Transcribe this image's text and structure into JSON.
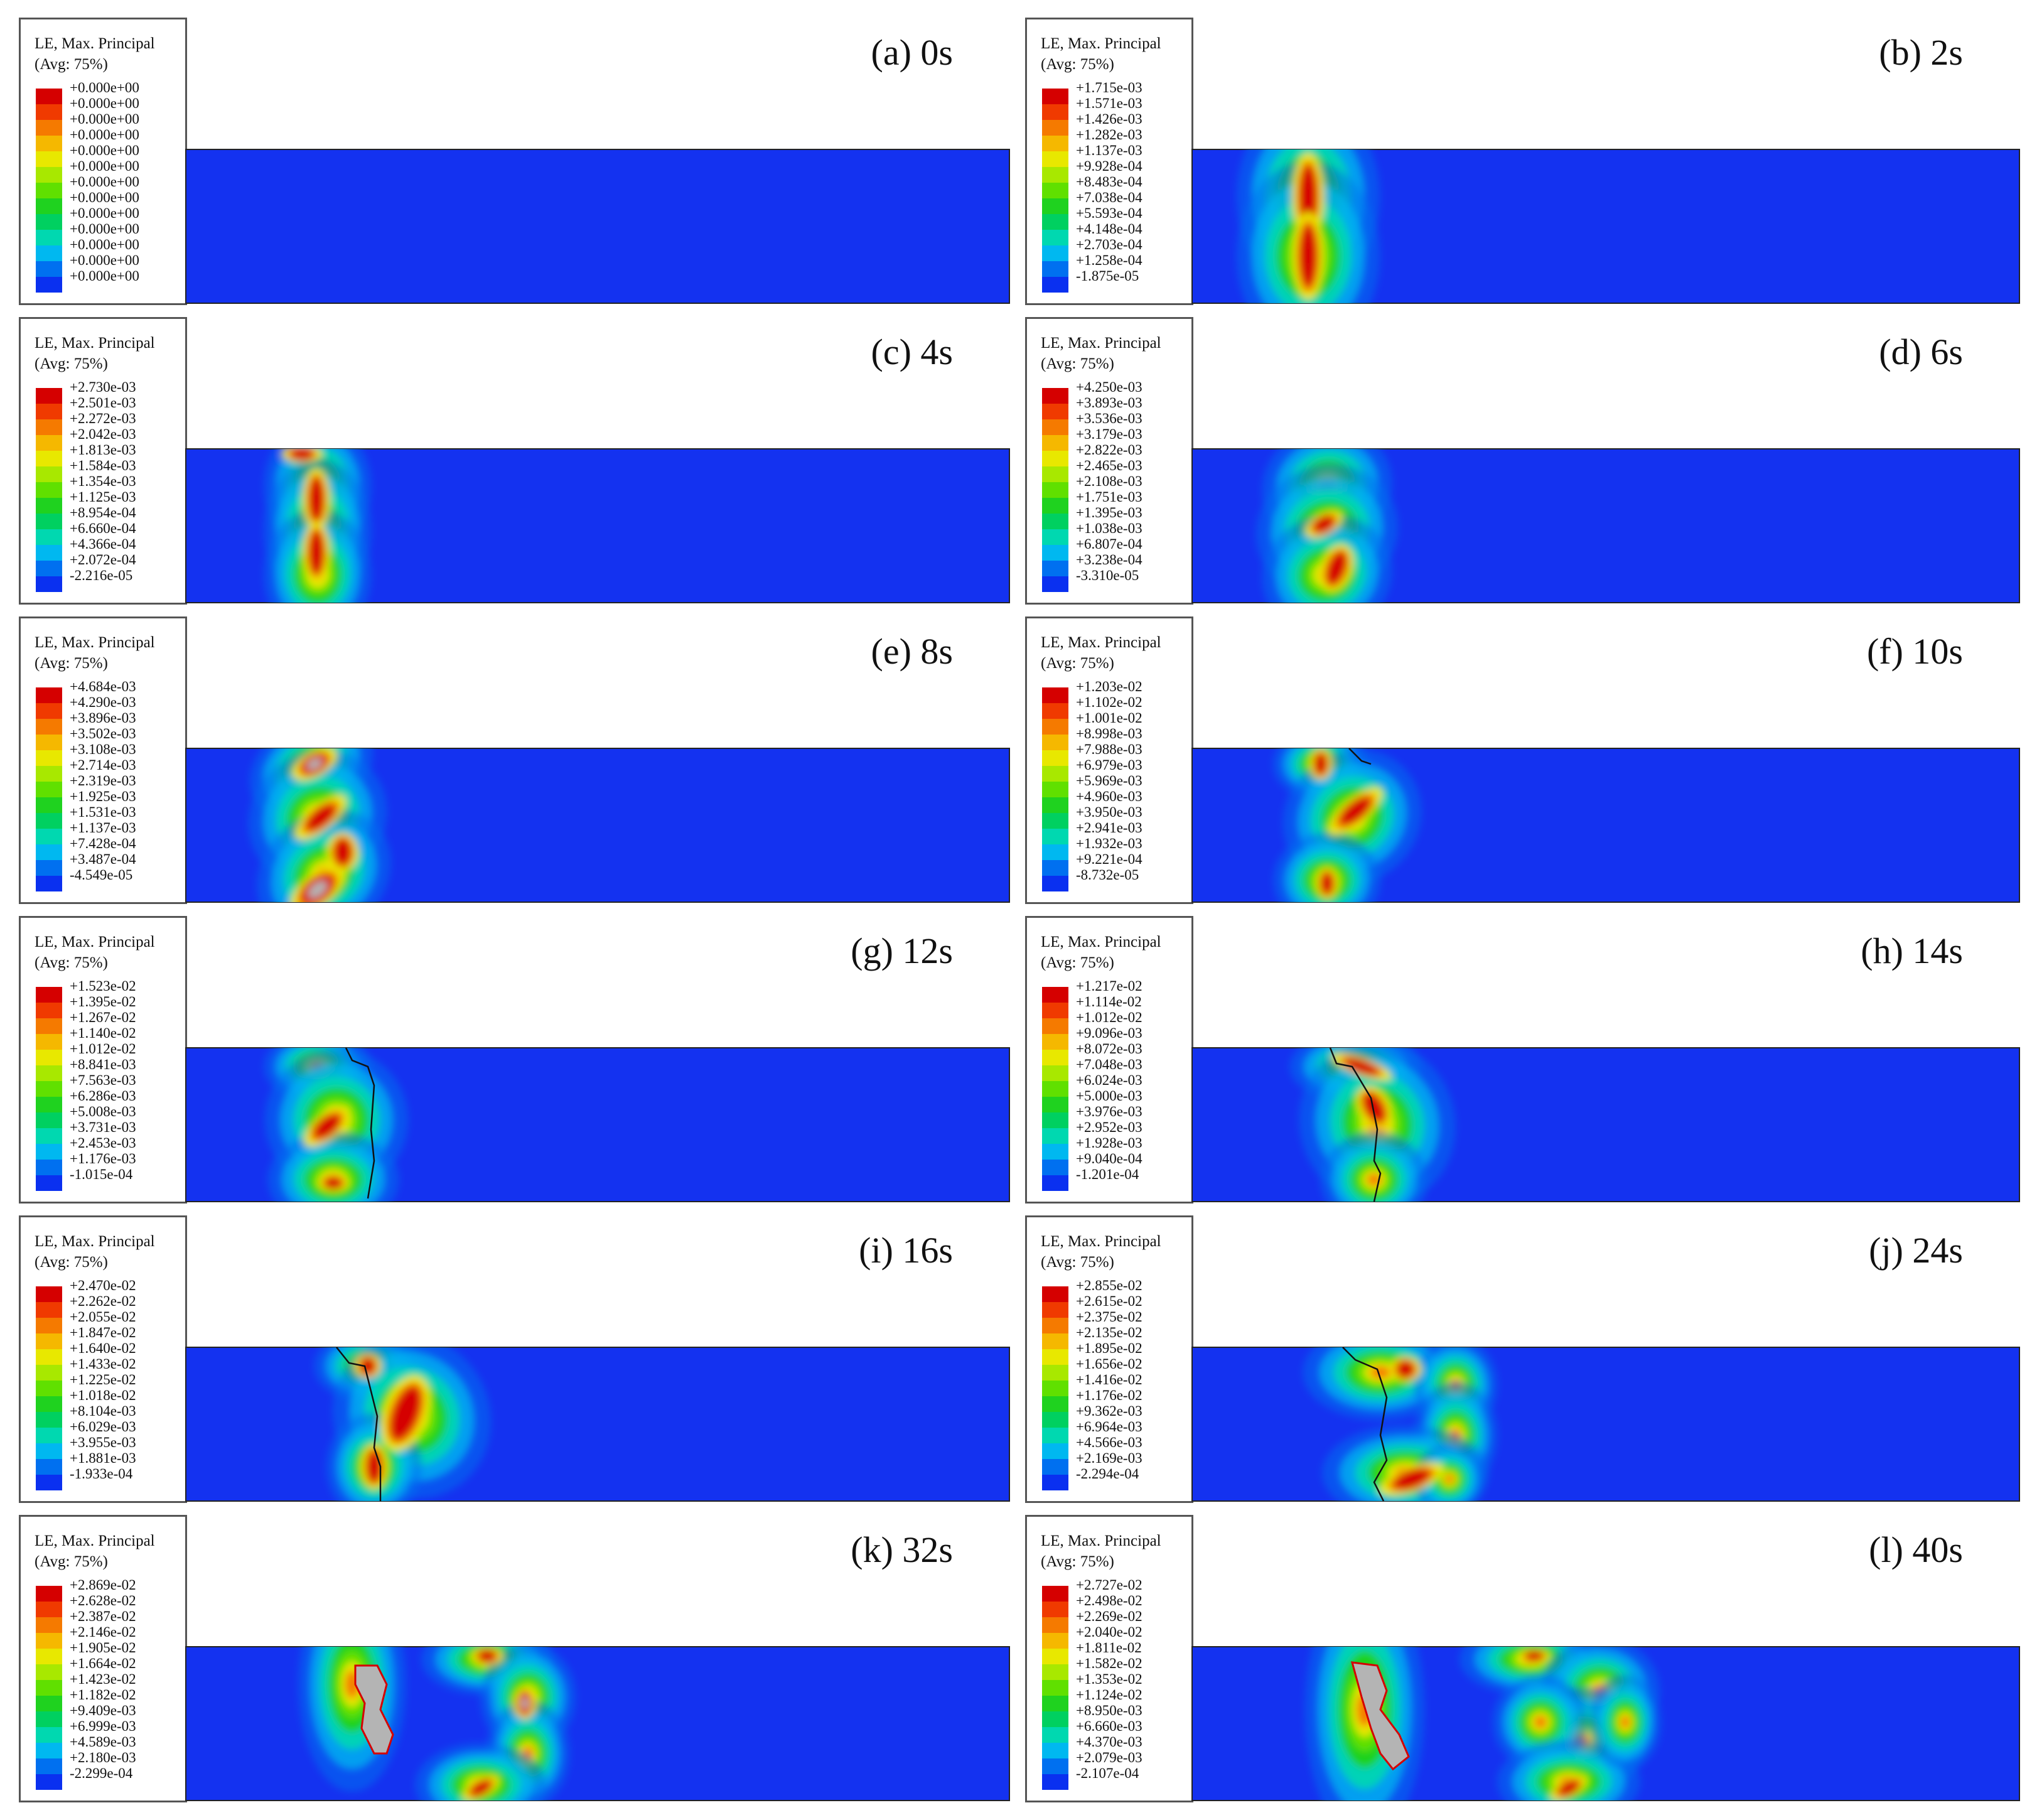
{
  "legend_title": "LE, Max. Principal",
  "legend_avg": "(Avg: 75%)",
  "colors": {
    "background_field": "#1432f0",
    "bands": [
      "#d50000",
      "#f03a00",
      "#f57a00",
      "#f5b800",
      "#e8e800",
      "#a8e800",
      "#60e000",
      "#1fd21f",
      "#00d060",
      "#00d8b0",
      "#00b8f0",
      "#0070f0",
      "#0a30f0"
    ],
    "failed": "#b4b4b4",
    "crack": "#111111",
    "border": "#555555"
  },
  "panels": [
    {
      "label": "(a) 0s",
      "values": [
        "+0.000e+00",
        "+0.000e+00",
        "+0.000e+00",
        "+0.000e+00",
        "+0.000e+00",
        "+0.000e+00",
        "+0.000e+00",
        "+0.000e+00",
        "+0.000e+00",
        "+0.000e+00",
        "+0.000e+00",
        "+0.000e+00",
        "+0.000e+00"
      ]
    },
    {
      "label": "(b) 2s",
      "values": [
        "+1.715e-03",
        "+1.571e-03",
        "+1.426e-03",
        "+1.282e-03",
        "+1.137e-03",
        "+9.928e-04",
        "+8.483e-04",
        "+7.038e-04",
        "+5.593e-04",
        "+4.148e-04",
        "+2.703e-04",
        "+1.258e-04",
        "-1.875e-05"
      ]
    },
    {
      "label": "(c) 4s",
      "values": [
        "+2.730e-03",
        "+2.501e-03",
        "+2.272e-03",
        "+2.042e-03",
        "+1.813e-03",
        "+1.584e-03",
        "+1.354e-03",
        "+1.125e-03",
        "+8.954e-04",
        "+6.660e-04",
        "+4.366e-04",
        "+2.072e-04",
        "-2.216e-05"
      ]
    },
    {
      "label": "(d) 6s",
      "values": [
        "+4.250e-03",
        "+3.893e-03",
        "+3.536e-03",
        "+3.179e-03",
        "+2.822e-03",
        "+2.465e-03",
        "+2.108e-03",
        "+1.751e-03",
        "+1.395e-03",
        "+1.038e-03",
        "+6.807e-04",
        "+3.238e-04",
        "-3.310e-05"
      ]
    },
    {
      "label": "(e) 8s",
      "values": [
        "+4.684e-03",
        "+4.290e-03",
        "+3.896e-03",
        "+3.502e-03",
        "+3.108e-03",
        "+2.714e-03",
        "+2.319e-03",
        "+1.925e-03",
        "+1.531e-03",
        "+1.137e-03",
        "+7.428e-04",
        "+3.487e-04",
        "-4.549e-05"
      ]
    },
    {
      "label": "(f) 10s",
      "values": [
        "+1.203e-02",
        "+1.102e-02",
        "+1.001e-02",
        "+8.998e-03",
        "+7.988e-03",
        "+6.979e-03",
        "+5.969e-03",
        "+4.960e-03",
        "+3.950e-03",
        "+2.941e-03",
        "+1.932e-03",
        "+9.221e-04",
        "-8.732e-05"
      ]
    },
    {
      "label": "(g) 12s",
      "values": [
        "+1.523e-02",
        "+1.395e-02",
        "+1.267e-02",
        "+1.140e-02",
        "+1.012e-02",
        "+8.841e-03",
        "+7.563e-03",
        "+6.286e-03",
        "+5.008e-03",
        "+3.731e-03",
        "+2.453e-03",
        "+1.176e-03",
        "-1.015e-04"
      ]
    },
    {
      "label": "(h) 14s",
      "values": [
        "+1.217e-02",
        "+1.114e-02",
        "+1.012e-02",
        "+9.096e-03",
        "+8.072e-03",
        "+7.048e-03",
        "+6.024e-03",
        "+5.000e-03",
        "+3.976e-03",
        "+2.952e-03",
        "+1.928e-03",
        "+9.040e-04",
        "-1.201e-04"
      ]
    },
    {
      "label": "(i) 16s",
      "values": [
        "+2.470e-02",
        "+2.262e-02",
        "+2.055e-02",
        "+1.847e-02",
        "+1.640e-02",
        "+1.433e-02",
        "+1.225e-02",
        "+1.018e-02",
        "+8.104e-03",
        "+6.029e-03",
        "+3.955e-03",
        "+1.881e-03",
        "-1.933e-04"
      ]
    },
    {
      "label": "(j) 24s",
      "values": [
        "+2.855e-02",
        "+2.615e-02",
        "+2.375e-02",
        "+2.135e-02",
        "+1.895e-02",
        "+1.656e-02",
        "+1.416e-02",
        "+1.176e-02",
        "+9.362e-03",
        "+6.964e-03",
        "+4.566e-03",
        "+2.169e-03",
        "-2.294e-04"
      ]
    },
    {
      "label": "(k) 32s",
      "values": [
        "+2.869e-02",
        "+2.628e-02",
        "+2.387e-02",
        "+2.146e-02",
        "+1.905e-02",
        "+1.664e-02",
        "+1.423e-02",
        "+1.182e-02",
        "+9.409e-03",
        "+6.999e-03",
        "+4.589e-03",
        "+2.180e-03",
        "-2.299e-04"
      ]
    },
    {
      "label": "(l) 40s",
      "values": [
        "+2.727e-02",
        "+2.498e-02",
        "+2.269e-02",
        "+2.040e-02",
        "+1.811e-02",
        "+1.582e-02",
        "+1.353e-02",
        "+1.124e-02",
        "+8.950e-03",
        "+6.660e-03",
        "+4.370e-03",
        "+2.079e-03",
        "-2.107e-04"
      ]
    }
  ]
}
